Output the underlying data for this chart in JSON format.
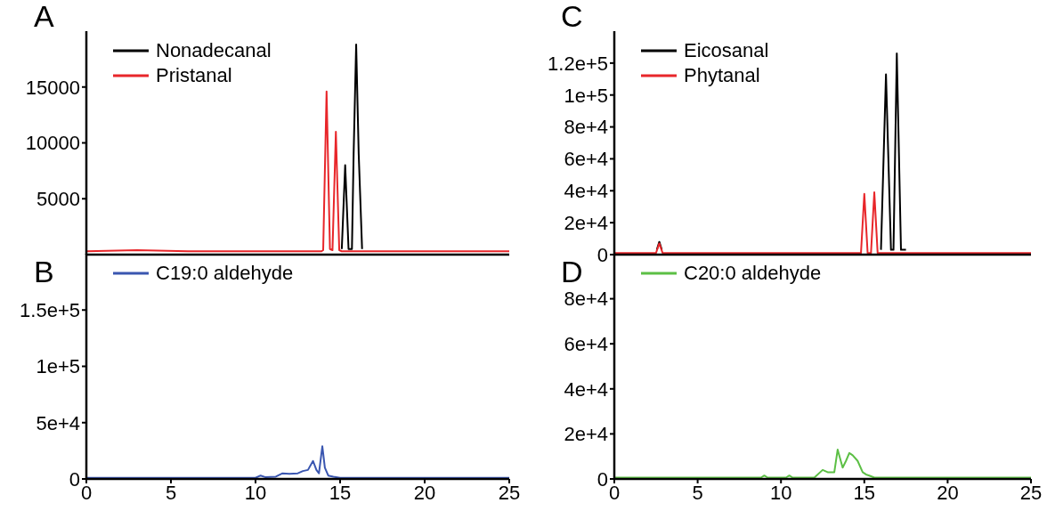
{
  "chart_data": [
    {
      "type": "line",
      "title": "A",
      "xlim": [
        0,
        25
      ],
      "xticks": [
        0,
        5,
        10,
        15,
        20,
        25
      ],
      "ylim": [
        0,
        20000
      ],
      "yticks": [
        5000,
        10000,
        15000
      ],
      "tick_labels": "y",
      "legend": "top left",
      "series": [
        {
          "name": "Nonadecanal",
          "color": "#000000",
          "x": [
            15.1,
            15.3,
            15.5,
            15.7,
            15.8,
            15.95,
            16.1,
            16.3
          ],
          "values": [
            500,
            8000,
            500,
            500,
            9000,
            18800,
            9000,
            500
          ]
        },
        {
          "name": "Pristanal",
          "color": "#e8262a",
          "x": [
            0,
            3,
            6,
            10,
            13.9,
            14.0,
            14.2,
            14.4,
            14.55,
            14.75,
            14.95,
            15.1,
            20,
            25
          ],
          "values": [
            300,
            400,
            300,
            300,
            300,
            400,
            14600,
            500,
            400,
            11000,
            400,
            300,
            300,
            300
          ]
        }
      ]
    },
    {
      "type": "line",
      "title": "C",
      "xlim": [
        0,
        25
      ],
      "xticks": [
        0,
        5,
        10,
        15,
        20,
        25
      ],
      "ylim": [
        0,
        140000
      ],
      "yticks": [
        0,
        {
          "value": 20000,
          "label": "2e+4"
        },
        {
          "value": 40000,
          "label": "4e+4"
        },
        {
          "value": 60000,
          "label": "6e+4"
        },
        {
          "value": 80000,
          "label": "8e+4"
        },
        {
          "value": 100000,
          "label": "1e+5"
        },
        {
          "value": 120000,
          "label": "1.2e+5"
        }
      ],
      "tick_labels": "y",
      "legend": "top left",
      "series": [
        {
          "name": "Eicosanal",
          "color": "#000000",
          "x": [
            2.55,
            2.7,
            2.85,
            2.86,
            16.0,
            16.3,
            16.6,
            16.75,
            16.95,
            17.2,
            17.5
          ],
          "values": [
            3000,
            8000,
            3000,
            null,
            3000,
            113000,
            3000,
            3000,
            126000,
            3000,
            3000
          ]
        },
        {
          "name": "Phytanal",
          "color": "#e8262a",
          "x": [
            0,
            2.5,
            2.7,
            2.9,
            10,
            14.8,
            15.0,
            15.2,
            15.4,
            15.6,
            15.8,
            16.0,
            25
          ],
          "values": [
            1000,
            1000,
            7000,
            1000,
            1000,
            1000,
            38000,
            1000,
            1000,
            39000,
            1000,
            1000,
            1000
          ]
        }
      ]
    },
    {
      "type": "line",
      "title": "B",
      "xlim": [
        0,
        25
      ],
      "xticks": [
        0,
        5,
        10,
        15,
        20,
        25
      ],
      "ylim": [
        0,
        200000
      ],
      "yticks": [
        0,
        {
          "value": 50000,
          "label": "5e+4"
        },
        {
          "value": 100000,
          "label": "1e+5"
        },
        {
          "value": 150000,
          "label": "1.5e+5"
        }
      ],
      "legend": "top left",
      "series": [
        {
          "name": "C19:0 aldehyde",
          "color": "#3a56b0",
          "x": [
            0,
            5,
            10,
            10.3,
            10.6,
            11.2,
            11.6,
            12.0,
            12.5,
            12.8,
            13.1,
            13.4,
            13.6,
            13.75,
            13.95,
            14.1,
            14.3,
            14.6,
            15,
            20,
            25
          ],
          "values": [
            1000,
            1000,
            1000,
            3000,
            1500,
            2000,
            5000,
            4500,
            5000,
            7000,
            8000,
            16000,
            8000,
            5000,
            29000,
            10000,
            3000,
            2000,
            1000,
            1000,
            1000
          ]
        }
      ]
    },
    {
      "type": "line",
      "title": "D",
      "xlim": [
        0,
        25
      ],
      "xticks": [
        0,
        5,
        10,
        15,
        20,
        25
      ],
      "ylim": [
        0,
        100000
      ],
      "yticks": [
        0,
        {
          "value": 20000,
          "label": "2e+4"
        },
        {
          "value": 40000,
          "label": "4e+4"
        },
        {
          "value": 60000,
          "label": "6e+4"
        },
        {
          "value": 80000,
          "label": "8e+4"
        }
      ],
      "legend": "top left",
      "series": [
        {
          "name": "C20:0 aldehyde",
          "color": "#5cbf45",
          "x": [
            0,
            8.8,
            9.0,
            9.2,
            10.3,
            10.5,
            10.7,
            12.0,
            12.5,
            12.8,
            13.2,
            13.4,
            13.7,
            13.9,
            14.1,
            14.3,
            14.6,
            14.9,
            15.1,
            15.3,
            15.6,
            25
          ],
          "values": [
            600,
            600,
            1500,
            600,
            600,
            1500,
            600,
            600,
            4000,
            3000,
            3000,
            13000,
            5000,
            8000,
            11500,
            10500,
            8000,
            3000,
            2000,
            1500,
            600,
            600
          ]
        }
      ]
    }
  ]
}
